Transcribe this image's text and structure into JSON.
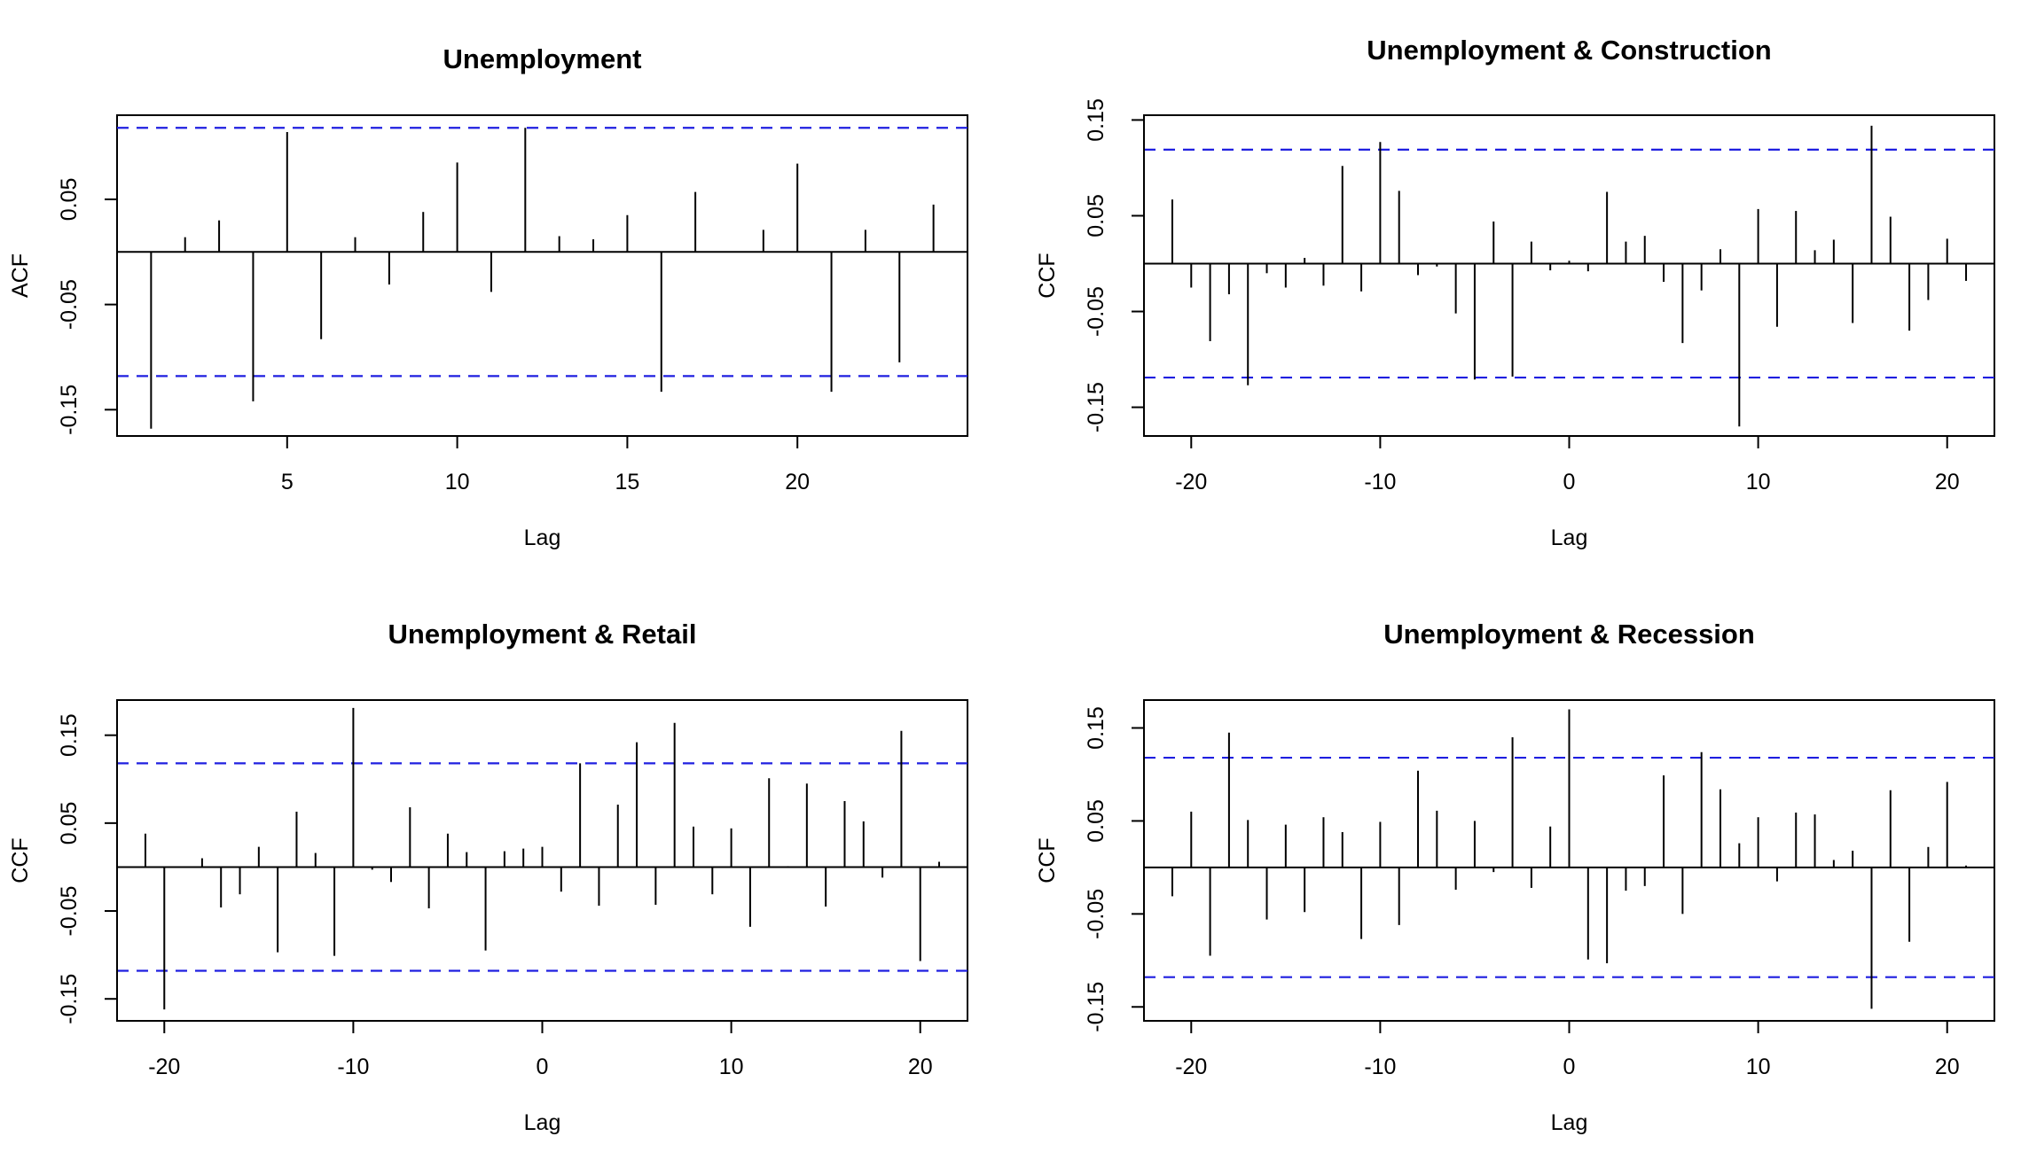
{
  "chart_data": [
    {
      "type": "bar",
      "title": "Unemployment",
      "xlabel": "Lag",
      "ylabel": "ACF",
      "xlim": [
        0,
        25
      ],
      "ylim": [
        -0.175,
        0.13
      ],
      "xticks": [
        5,
        10,
        15,
        20
      ],
      "yticks": [
        -0.15,
        -0.05,
        0.05
      ],
      "ytick_labels": [
        "-0.15",
        "-0.05",
        "0.05"
      ],
      "conf_band": 0.118,
      "x": [
        1,
        2,
        3,
        4,
        5,
        6,
        7,
        8,
        9,
        10,
        11,
        12,
        13,
        14,
        15,
        16,
        17,
        18,
        19,
        20,
        21,
        22,
        23,
        24
      ],
      "values": [
        -0.168,
        0.014,
        0.03,
        -0.142,
        0.114,
        -0.083,
        0.014,
        -0.031,
        0.038,
        0.085,
        -0.038,
        0.118,
        0.015,
        0.012,
        0.035,
        -0.133,
        0.057,
        0.0,
        0.021,
        0.084,
        -0.133,
        0.021,
        -0.105,
        0.045
      ]
    },
    {
      "type": "bar",
      "title": "Unemployment & Construction",
      "xlabel": "Lag",
      "ylabel": "CCF",
      "xlim": [
        -22.5,
        22.5
      ],
      "ylim": [
        -0.18,
        0.155
      ],
      "xticks": [
        -20,
        -10,
        0,
        10,
        20
      ],
      "yticks": [
        -0.15,
        -0.05,
        0.05,
        0.15
      ],
      "ytick_labels": [
        "-0.15",
        "-0.05",
        "0.05",
        "0.15"
      ],
      "conf_band": 0.119,
      "x": [
        -21,
        -20,
        -19,
        -18,
        -17,
        -16,
        -15,
        -14,
        -13,
        -12,
        -11,
        -10,
        -9,
        -8,
        -7,
        -6,
        -5,
        -4,
        -3,
        -2,
        -1,
        0,
        1,
        2,
        3,
        4,
        5,
        6,
        7,
        8,
        9,
        10,
        11,
        12,
        13,
        14,
        15,
        16,
        17,
        18,
        19,
        20,
        21
      ],
      "values": [
        0.067,
        -0.025,
        -0.081,
        -0.032,
        -0.127,
        -0.01,
        -0.025,
        0.006,
        -0.023,
        0.102,
        -0.029,
        0.127,
        0.076,
        -0.012,
        -0.003,
        -0.052,
        -0.121,
        0.044,
        -0.118,
        0.023,
        -0.007,
        0.003,
        -0.008,
        0.075,
        0.023,
        0.029,
        -0.019,
        -0.083,
        -0.028,
        0.015,
        -0.17,
        0.057,
        -0.066,
        0.055,
        0.014,
        0.025,
        -0.062,
        0.144,
        0.049,
        -0.07,
        -0.038,
        0.026,
        -0.018
      ]
    },
    {
      "type": "bar",
      "title": "Unemployment & Retail",
      "xlabel": "Lag",
      "ylabel": "CCF",
      "xlim": [
        -22.5,
        22.5
      ],
      "ylim": [
        -0.175,
        0.19
      ],
      "xticks": [
        -20,
        -10,
        0,
        10,
        20
      ],
      "yticks": [
        -0.15,
        -0.05,
        0.05,
        0.15
      ],
      "ytick_labels": [
        "-0.15",
        "-0.05",
        "0.05",
        "0.15"
      ],
      "conf_band": 0.118,
      "x": [
        -21,
        -20,
        -19,
        -18,
        -17,
        -16,
        -15,
        -14,
        -13,
        -12,
        -11,
        -10,
        -9,
        -8,
        -7,
        -6,
        -5,
        -4,
        -3,
        -2,
        -1,
        0,
        1,
        2,
        3,
        4,
        5,
        6,
        7,
        8,
        9,
        10,
        11,
        12,
        13,
        14,
        15,
        16,
        17,
        18,
        19,
        20,
        21
      ],
      "values": [
        0.038,
        -0.162,
        0.0,
        0.01,
        -0.046,
        -0.031,
        0.023,
        -0.097,
        0.063,
        0.016,
        -0.101,
        0.181,
        -0.003,
        -0.017,
        0.068,
        -0.047,
        0.038,
        0.017,
        -0.095,
        0.018,
        0.021,
        0.023,
        -0.028,
        0.118,
        -0.044,
        0.071,
        0.142,
        -0.043,
        0.164,
        0.046,
        -0.031,
        0.044,
        -0.068,
        0.101,
        0.001,
        0.095,
        -0.045,
        0.075,
        0.052,
        -0.012,
        0.155,
        -0.107,
        0.006
      ]
    },
    {
      "type": "bar",
      "title": "Unemployment & Recession",
      "xlabel": "Lag",
      "ylabel": "CCF",
      "xlim": [
        -22.5,
        22.5
      ],
      "ylim": [
        -0.165,
        0.18
      ],
      "xticks": [
        -20,
        -10,
        0,
        10,
        20
      ],
      "yticks": [
        -0.15,
        -0.05,
        0.05,
        0.15
      ],
      "ytick_labels": [
        "-0.15",
        "-0.05",
        "0.05",
        "0.15"
      ],
      "conf_band": 0.118,
      "x": [
        -21,
        -20,
        -19,
        -18,
        -17,
        -16,
        -15,
        -14,
        -13,
        -12,
        -11,
        -10,
        -9,
        -8,
        -7,
        -6,
        -5,
        -4,
        -3,
        -2,
        -1,
        0,
        1,
        2,
        3,
        4,
        5,
        6,
        7,
        8,
        9,
        10,
        11,
        12,
        13,
        14,
        15,
        16,
        17,
        18,
        19,
        20,
        21
      ],
      "values": [
        -0.031,
        0.06,
        -0.095,
        0.145,
        0.051,
        -0.056,
        0.046,
        -0.048,
        0.054,
        0.038,
        -0.077,
        0.049,
        -0.062,
        0.104,
        0.061,
        -0.024,
        0.05,
        -0.005,
        0.14,
        -0.022,
        0.044,
        0.17,
        -0.099,
        -0.103,
        -0.025,
        -0.02,
        0.099,
        -0.05,
        0.124,
        0.084,
        0.026,
        0.054,
        -0.015,
        0.059,
        0.057,
        0.008,
        0.018,
        -0.152,
        0.083,
        -0.08,
        0.022,
        0.092,
        0.002
      ]
    }
  ]
}
